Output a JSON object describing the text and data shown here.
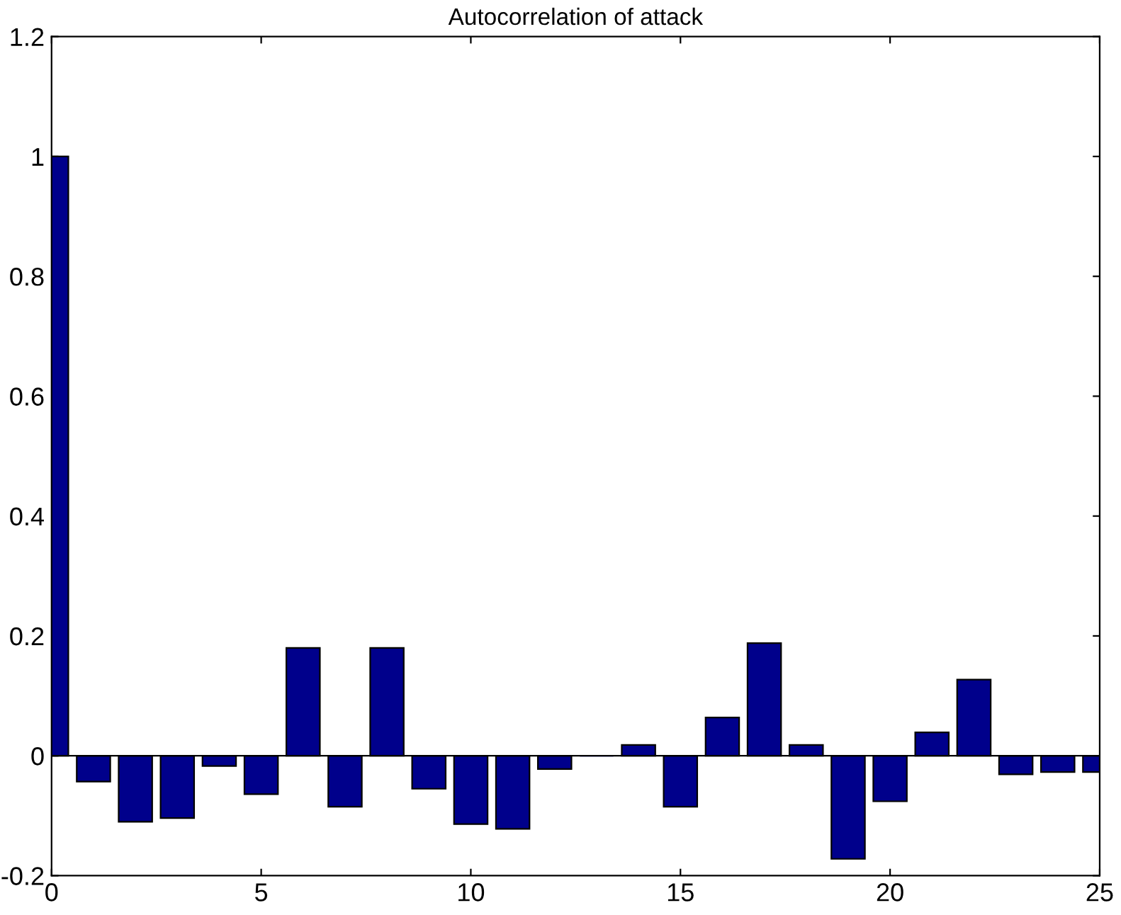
{
  "chart_data": {
    "type": "bar",
    "title": "Autocorrelation of attack",
    "x": [
      0,
      1,
      2,
      3,
      4,
      5,
      6,
      7,
      8,
      9,
      10,
      11,
      12,
      13,
      14,
      15,
      16,
      17,
      18,
      19,
      20,
      21,
      22,
      23,
      24,
      25
    ],
    "series": [
      {
        "color": "#00008b",
        "values": [
          1.0,
          -0.043,
          -0.11,
          -0.104,
          -0.017,
          -0.064,
          0.18,
          -0.085,
          0.18,
          -0.055,
          -0.114,
          -0.122,
          -0.022,
          0,
          0.018,
          -0.085,
          0.064,
          0.188,
          0.018,
          -0.172,
          -0.076,
          0.039,
          0.127,
          -0.031,
          -0.027,
          -0.027
        ]
      }
    ],
    "xlim": [
      0,
      25
    ],
    "xticks": [
      0,
      5,
      10,
      15,
      20,
      25
    ],
    "ylim": [
      -0.2,
      1.2
    ],
    "yticks": [
      -0.2,
      0,
      0.2,
      0.4,
      0.6,
      0.8,
      1,
      1.2
    ],
    "ref_lines": [
      {
        "axis": "y",
        "value": 0,
        "color": "#000000"
      }
    ],
    "grid": false,
    "legend": false
  }
}
